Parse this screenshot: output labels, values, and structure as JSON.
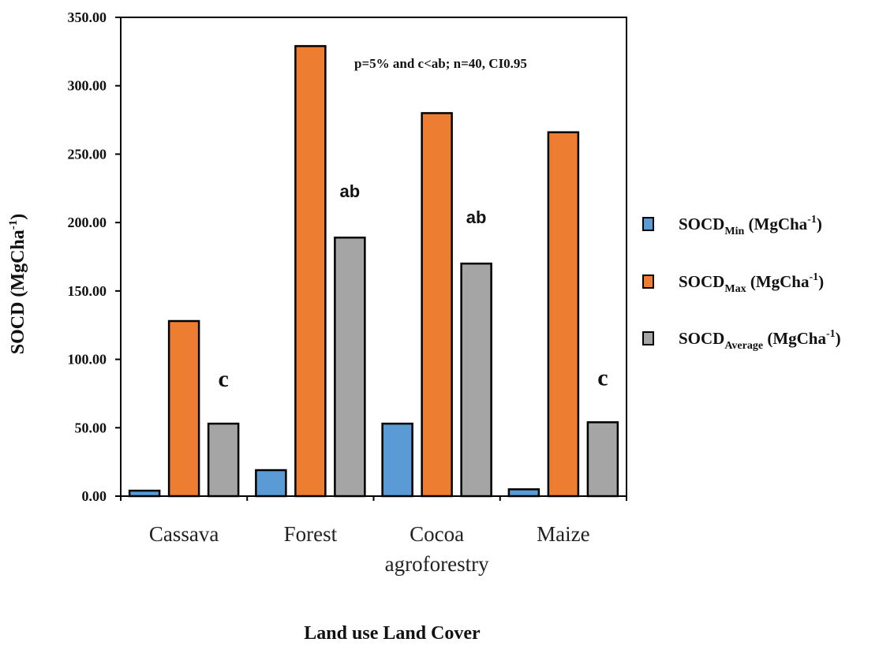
{
  "chart_data": {
    "type": "bar",
    "categories": [
      "Cassava",
      "Forest",
      "Cocoa agroforestry",
      "Maize"
    ],
    "category_lines": [
      [
        "Cassava"
      ],
      [
        "Forest"
      ],
      [
        "Cocoa",
        "agroforestry"
      ],
      [
        "Maize"
      ]
    ],
    "series": [
      {
        "name": "SOCDMin (MgCha-1)",
        "color": "#5b9bd5",
        "values": [
          4,
          19,
          53,
          5
        ]
      },
      {
        "name": "SOCDMax (MgCha-1)",
        "color": "#ed7d31",
        "values": [
          128,
          329,
          280,
          266
        ]
      },
      {
        "name": "SOCDAverage (MgCha-1)",
        "color": "#a5a5a5",
        "values": [
          53,
          189,
          170,
          54
        ]
      }
    ],
    "ylim": [
      0,
      350
    ],
    "yticks": [
      "0.00",
      "50.00",
      "100.00",
      "150.00",
      "200.00",
      "250.00",
      "300.00",
      "350.00"
    ],
    "xlabel": "Land use Land Cover",
    "ylabel": "SOCD (MgCha-1)",
    "annotation": "p=5% and c<ab; n=40, CI0.95",
    "significance_letters": [
      "c",
      "ab",
      "ab",
      "c"
    ],
    "legend_position": "right",
    "grid": false
  }
}
